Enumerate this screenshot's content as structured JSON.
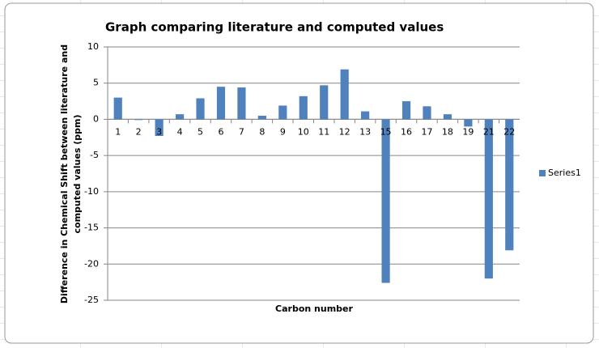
{
  "chart_data": {
    "type": "bar",
    "title": "Graph comparing literature and computed values",
    "xlabel": "Carbon number",
    "ylabel": [
      "Difference in Chemical Shift between literature and",
      "computed values (ppm)"
    ],
    "categories": [
      "1",
      "2",
      "3",
      "4",
      "5",
      "6",
      "7",
      "8",
      "9",
      "10",
      "11",
      "12",
      "13",
      "15",
      "16",
      "17",
      "18",
      "19",
      "21",
      "22"
    ],
    "series": [
      {
        "name": "Series1",
        "color": "#4f81bd",
        "values": [
          3.0,
          -0.1,
          -2.3,
          0.7,
          2.9,
          4.5,
          4.4,
          0.5,
          1.9,
          3.2,
          4.7,
          6.9,
          1.1,
          -22.6,
          2.5,
          1.8,
          0.7,
          -1.0,
          -22.0,
          -18.1
        ]
      }
    ],
    "ylim": [
      -25,
      10
    ],
    "yticks": [
      10,
      5,
      0,
      -5,
      -10,
      -15,
      -20,
      -25
    ],
    "grid": true,
    "legend": "right"
  }
}
